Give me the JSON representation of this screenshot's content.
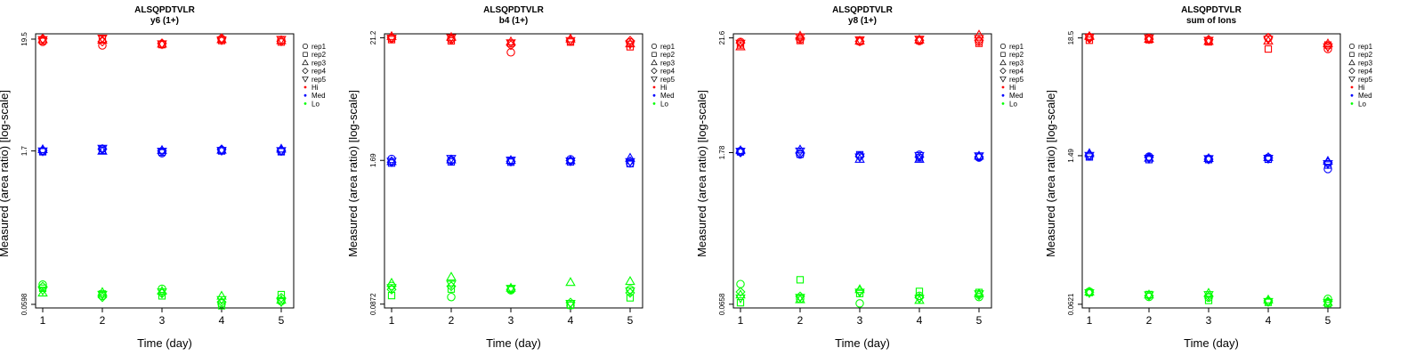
{
  "chart_data": [
    {
      "type": "scatter",
      "title": "ALSQPDTVLR",
      "subtitle": "y6 (1+)",
      "xlabel": "Time (day)",
      "ylabel": "Measured (area ratio) [log-scale]",
      "y_scale": "log",
      "x": [
        1,
        2,
        3,
        4,
        5
      ],
      "yticks": [
        {
          "label": "0.0598",
          "value": 0.0598
        },
        {
          "label": "1.7",
          "value": 1.7
        },
        {
          "label": "19.5",
          "value": 19.5
        }
      ],
      "ylim": [
        0.0553,
        21.9
      ],
      "groups": [
        {
          "name": "Hi",
          "color": "#ff0000",
          "series": [
            {
              "name": "rep1",
              "values": [
                18.4,
                17.0,
                17.4,
                19.6,
                19.1
              ]
            },
            {
              "name": "rep2",
              "values": [
                18.8,
                19.5,
                17.3,
                18.9,
                18.3
              ]
            },
            {
              "name": "rep3",
              "values": [
                19.4,
                19.2,
                17.6,
                19.4,
                19.0
              ]
            },
            {
              "name": "rep4",
              "values": [
                19.7,
                18.5,
                17.8,
                19.9,
                18.6
              ]
            },
            {
              "name": "rep5",
              "values": [
                19.2,
                19.8,
                17.5,
                19.1,
                19.3
              ]
            }
          ]
        },
        {
          "name": "Med",
          "color": "#0000ff",
          "series": [
            {
              "name": "rep1",
              "values": [
                1.7,
                1.78,
                1.62,
                1.73,
                1.69
              ]
            },
            {
              "name": "rep2",
              "values": [
                1.67,
                1.72,
                1.66,
                1.7,
                1.67
              ]
            },
            {
              "name": "rep3",
              "values": [
                1.76,
                1.7,
                1.73,
                1.74,
                1.78
              ]
            },
            {
              "name": "rep4",
              "values": [
                1.72,
                1.77,
                1.7,
                1.76,
                1.72
              ]
            },
            {
              "name": "rep5",
              "values": [
                1.69,
                1.79,
                1.68,
                1.71,
                1.7
              ]
            }
          ]
        },
        {
          "name": "Lo",
          "color": "#00ff00",
          "series": [
            {
              "name": "rep1",
              "values": [
                0.092,
                0.072,
                0.084,
                0.061,
                0.064
              ]
            },
            {
              "name": "rep2",
              "values": [
                0.085,
                0.075,
                0.072,
                0.058,
                0.074
              ]
            },
            {
              "name": "rep3",
              "values": [
                0.077,
                0.078,
                0.08,
                0.072,
                0.066
              ]
            },
            {
              "name": "rep4",
              "values": [
                0.088,
                0.07,
                0.076,
                0.063,
                0.069
              ]
            },
            {
              "name": "rep5",
              "values": [
                0.081,
                0.074,
                0.078,
                0.066,
                0.063
              ]
            }
          ]
        }
      ],
      "legend": {
        "placement": "right",
        "entries": [
          {
            "label": "rep1",
            "marker": "circle"
          },
          {
            "label": "rep2",
            "marker": "square"
          },
          {
            "label": "rep3",
            "marker": "triangle-up"
          },
          {
            "label": "rep4",
            "marker": "diamond"
          },
          {
            "label": "rep5",
            "marker": "triangle-down"
          },
          {
            "label": "Hi",
            "marker": "dot",
            "color": "#ff0000"
          },
          {
            "label": "Med",
            "marker": "dot",
            "color": "#0000ff"
          },
          {
            "label": "Lo",
            "marker": "dot",
            "color": "#00ff00"
          }
        ]
      }
    },
    {
      "type": "scatter",
      "title": "ALSQPDTVLR",
      "subtitle": "b4 (1+)",
      "xlabel": "Time (day)",
      "ylabel": "Measured (area ratio) [log-scale]",
      "y_scale": "log",
      "x": [
        1,
        2,
        3,
        4,
        5
      ],
      "yticks": [
        {
          "label": "0.0872",
          "value": 0.0872
        },
        {
          "label": "1.69",
          "value": 1.69
        },
        {
          "label": "21.2",
          "value": 21.2
        }
      ],
      "ylim": [
        0.0806,
        23.0
      ],
      "groups": [
        {
          "name": "Hi",
          "color": "#ff0000",
          "series": [
            {
              "name": "rep1",
              "values": [
                21.0,
                20.8,
                15.7,
                19.7,
                19.3
              ]
            },
            {
              "name": "rep2",
              "values": [
                20.4,
                19.9,
                18.9,
                19.4,
                17.6
              ]
            },
            {
              "name": "rep3",
              "values": [
                21.9,
                21.5,
                19.6,
                20.8,
                18.8
              ]
            },
            {
              "name": "rep4",
              "values": [
                21.4,
                20.3,
                18.2,
                20.2,
                19.9
              ]
            },
            {
              "name": "rep5",
              "values": [
                20.9,
                21.1,
                19.0,
                19.9,
                18.5
              ]
            }
          ]
        },
        {
          "name": "Med",
          "color": "#0000ff",
          "series": [
            {
              "name": "rep1",
              "values": [
                1.74,
                1.7,
                1.67,
                1.73,
                1.59
              ]
            },
            {
              "name": "rep2",
              "values": [
                1.6,
                1.64,
                1.63,
                1.64,
                1.58
              ]
            },
            {
              "name": "rep3",
              "values": [
                1.66,
                1.72,
                1.7,
                1.69,
                1.78
              ]
            },
            {
              "name": "rep4",
              "values": [
                1.63,
                1.67,
                1.65,
                1.68,
                1.66
              ]
            },
            {
              "name": "rep5",
              "values": [
                1.65,
                1.75,
                1.69,
                1.66,
                1.64
              ]
            }
          ]
        },
        {
          "name": "Lo",
          "color": "#00ff00",
          "series": [
            {
              "name": "rep1",
              "values": [
                0.127,
                0.101,
                0.116,
                0.0851,
                0.118
              ]
            },
            {
              "name": "rep2",
              "values": [
                0.104,
                0.119,
                0.119,
                0.0851,
                0.0993
              ]
            },
            {
              "name": "rep3",
              "values": [
                0.135,
                0.153,
                0.122,
                0.137,
                0.14
              ]
            },
            {
              "name": "rep4",
              "values": [
                0.118,
                0.126,
                0.118,
                0.09,
                0.11
              ]
            },
            {
              "name": "rep5",
              "values": [
                0.122,
                0.131,
                0.12,
                0.088,
                0.114
              ]
            }
          ]
        }
      ],
      "legend": {
        "placement": "right",
        "entries": [
          {
            "label": "rep1",
            "marker": "circle"
          },
          {
            "label": "rep2",
            "marker": "square"
          },
          {
            "label": "rep3",
            "marker": "triangle-up"
          },
          {
            "label": "rep4",
            "marker": "diamond"
          },
          {
            "label": "rep5",
            "marker": "triangle-down"
          },
          {
            "label": "Hi",
            "marker": "dot",
            "color": "#ff0000"
          },
          {
            "label": "Med",
            "marker": "dot",
            "color": "#0000ff"
          },
          {
            "label": "Lo",
            "marker": "dot",
            "color": "#00ff00"
          }
        ]
      }
    },
    {
      "type": "scatter",
      "title": "ALSQPDTVLR",
      "subtitle": "y8 (1+)",
      "xlabel": "Time (day)",
      "ylabel": "Measured (area ratio) [log-scale]",
      "y_scale": "log",
      "x": [
        1,
        2,
        3,
        4,
        5
      ],
      "yticks": [
        {
          "label": "0.0658",
          "value": 0.0658
        },
        {
          "label": "1.78",
          "value": 1.78
        },
        {
          "label": "21.6",
          "value": 21.6
        }
      ],
      "ylim": [
        0.0607,
        23.6
      ],
      "groups": [
        {
          "name": "Hi",
          "color": "#ff0000",
          "series": [
            {
              "name": "rep1",
              "values": [
                19.8,
                21.0,
                19.9,
                20.2,
                19.9
              ]
            },
            {
              "name": "rep2",
              "values": [
                18.5,
                20.4,
                20.1,
                20.4,
                19.2
              ]
            },
            {
              "name": "rep3",
              "values": [
                17.9,
                22.6,
                20.3,
                20.8,
                23.1
              ]
            },
            {
              "name": "rep4",
              "values": [
                19.4,
                21.6,
                20.0,
                20.5,
                20.5
              ]
            },
            {
              "name": "rep5",
              "values": [
                19.1,
                21.9,
                20.6,
                20.9,
                21.2
              ]
            }
          ]
        },
        {
          "name": "Med",
          "color": "#0000ff",
          "series": [
            {
              "name": "rep1",
              "values": [
                1.84,
                1.71,
                1.66,
                1.7,
                1.6
              ]
            },
            {
              "name": "rep2",
              "values": [
                1.81,
                1.72,
                1.7,
                1.59,
                1.64
              ]
            },
            {
              "name": "rep3",
              "values": [
                1.87,
                1.9,
                1.55,
                1.55,
                1.66
              ]
            },
            {
              "name": "rep4",
              "values": [
                1.79,
                1.76,
                1.64,
                1.62,
                1.62
              ]
            },
            {
              "name": "rep5",
              "values": [
                1.82,
                1.83,
                1.61,
                1.66,
                1.65
              ]
            }
          ]
        },
        {
          "name": "Lo",
          "color": "#00ff00",
          "series": [
            {
              "name": "rep1",
              "values": [
                0.102,
                0.074,
                0.067,
                0.079,
                0.077
              ]
            },
            {
              "name": "rep2",
              "values": [
                0.068,
                0.112,
                0.083,
                0.087,
                0.085
              ]
            },
            {
              "name": "rep3",
              "values": [
                0.081,
                0.073,
                0.091,
                0.072,
                0.083
              ]
            },
            {
              "name": "rep4",
              "values": [
                0.086,
                0.078,
                0.088,
                0.076,
                0.08
              ]
            },
            {
              "name": "rep5",
              "values": [
                0.075,
                0.076,
                0.085,
                0.074,
                0.082
              ]
            }
          ]
        }
      ],
      "legend": {
        "placement": "right",
        "entries": [
          {
            "label": "rep1",
            "marker": "circle"
          },
          {
            "label": "rep2",
            "marker": "square"
          },
          {
            "label": "rep3",
            "marker": "triangle-up"
          },
          {
            "label": "rep4",
            "marker": "diamond"
          },
          {
            "label": "rep5",
            "marker": "triangle-down"
          },
          {
            "label": "Hi",
            "marker": "dot",
            "color": "#ff0000"
          },
          {
            "label": "Med",
            "marker": "dot",
            "color": "#0000ff"
          },
          {
            "label": "Lo",
            "marker": "dot",
            "color": "#00ff00"
          }
        ]
      }
    },
    {
      "type": "scatter",
      "title": "ALSQPDTVLR",
      "subtitle": "sum of Ions",
      "xlabel": "Time (day)",
      "ylabel": "Measured (area ratio) [log-scale]",
      "y_scale": "log",
      "x": [
        1,
        2,
        3,
        4,
        5
      ],
      "yticks": [
        {
          "label": "0.0621",
          "value": 0.0621
        },
        {
          "label": "1.49",
          "value": 1.49
        },
        {
          "label": "18.5",
          "value": 18.5
        }
      ],
      "ylim": [
        0.0574,
        20.2
      ],
      "groups": [
        {
          "name": "Hi",
          "color": "#ff0000",
          "series": [
            {
              "name": "rep1",
              "values": [
                18.9,
                18.5,
                17.6,
                18.4,
                14.6
              ]
            },
            {
              "name": "rep2",
              "values": [
                17.6,
                17.8,
                17.0,
                14.6,
                15.9
              ]
            },
            {
              "name": "rep3",
              "values": [
                19.2,
                18.1,
                17.3,
                17.4,
                16.4
              ]
            },
            {
              "name": "rep4",
              "values": [
                18.3,
                18.0,
                17.8,
                18.6,
                15.5
              ]
            },
            {
              "name": "rep5",
              "values": [
                18.6,
                18.4,
                17.5,
                17.9,
                15.2
              ]
            }
          ]
        },
        {
          "name": "Med",
          "color": "#0000ff",
          "series": [
            {
              "name": "rep1",
              "values": [
                1.48,
                1.46,
                1.4,
                1.43,
                1.12
              ]
            },
            {
              "name": "rep2",
              "values": [
                1.45,
                1.37,
                1.37,
                1.38,
                1.22
              ]
            },
            {
              "name": "rep3",
              "values": [
                1.57,
                1.42,
                1.41,
                1.44,
                1.33
              ]
            },
            {
              "name": "rep4",
              "values": [
                1.51,
                1.44,
                1.38,
                1.42,
                1.28
              ]
            },
            {
              "name": "rep5",
              "values": [
                1.49,
                1.4,
                1.39,
                1.4,
                1.25
              ]
            }
          ]
        },
        {
          "name": "Lo",
          "color": "#00ff00",
          "series": [
            {
              "name": "rep1",
              "values": [
                0.0815,
                0.0726,
                0.0716,
                0.0662,
                0.0697
              ]
            },
            {
              "name": "rep2",
              "values": [
                0.0797,
                0.0765,
                0.0674,
                0.0647,
                0.063
              ]
            },
            {
              "name": "rep3",
              "values": [
                0.0812,
                0.0763,
                0.0791,
                0.0685,
                0.065
              ]
            },
            {
              "name": "rep4",
              "values": [
                0.0805,
                0.0745,
                0.0733,
                0.0668,
                0.066
              ]
            },
            {
              "name": "rep5",
              "values": [
                0.079,
                0.0755,
                0.076,
                0.0655,
                0.064
              ]
            }
          ]
        }
      ],
      "legend": {
        "placement": "right",
        "entries": [
          {
            "label": "rep1",
            "marker": "circle"
          },
          {
            "label": "rep2",
            "marker": "square"
          },
          {
            "label": "rep3",
            "marker": "triangle-up"
          },
          {
            "label": "rep4",
            "marker": "diamond"
          },
          {
            "label": "rep5",
            "marker": "triangle-down"
          },
          {
            "label": "Hi",
            "marker": "dot",
            "color": "#ff0000"
          },
          {
            "label": "Med",
            "marker": "dot",
            "color": "#0000ff"
          },
          {
            "label": "Lo",
            "marker": "dot",
            "color": "#00ff00"
          }
        ]
      }
    }
  ]
}
